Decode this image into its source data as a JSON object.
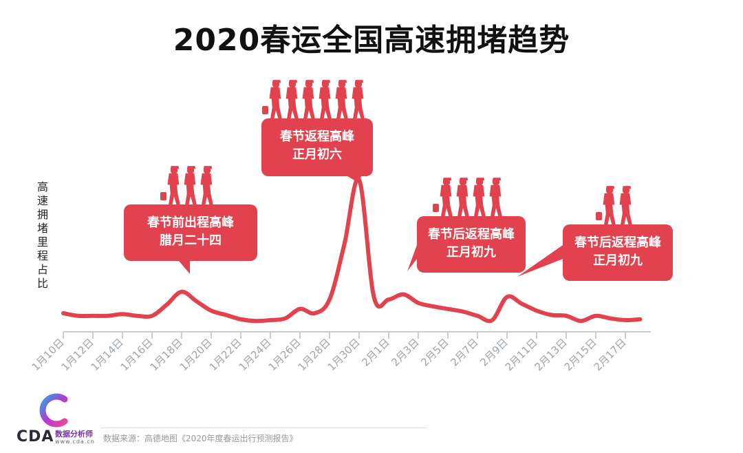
{
  "title": "2020春运全国高速拥堵趋势",
  "colors": {
    "accent": "#e2424e",
    "axis": "#c8ccd6",
    "tick_text": "#9ea3ad",
    "title": "#111111"
  },
  "chart_data": {
    "type": "line",
    "title": "2020春运全国高速拥堵趋势",
    "xlabel": "",
    "ylabel": "高速拥堵里程占比",
    "y_axis_visible": false,
    "grid": false,
    "x_tick_labels": [
      "1月10日",
      "1月12日",
      "1月14日",
      "1月16日",
      "1月18日",
      "1月20日",
      "1月22日",
      "1月24日",
      "1月26日",
      "1月28日",
      "1月30日",
      "2月1日",
      "2月3日",
      "2月5日",
      "2月7日",
      "2月9日",
      "2月11日",
      "2月13日",
      "2月15日",
      "2月17日"
    ],
    "series": [
      {
        "x": [
          "1月10日",
          "1月11日",
          "1月12日",
          "1月13日",
          "1月14日",
          "1月15日",
          "1月16日",
          "1月17日",
          "1月18日",
          "1月19日",
          "1月20日",
          "1月21日",
          "1月22日",
          "1月23日",
          "1月24日",
          "1月25日",
          "1月26日",
          "1月27日",
          "1月28日",
          "1月29日",
          "1月30日",
          "1月31日",
          "2月1日",
          "2月2日",
          "2月3日",
          "2月4日",
          "2月5日",
          "2月6日",
          "2月7日",
          "2月8日",
          "2月9日",
          "2月10日",
          "2月11日",
          "2月12日",
          "2月13日",
          "2月14日",
          "2月15日",
          "2月16日",
          "2月17日",
          "2月18日"
        ],
        "values": [
          12,
          9,
          9,
          9,
          11,
          9,
          9,
          22,
          37,
          26,
          15,
          10,
          5,
          3,
          4,
          6,
          17,
          12,
          28,
          92,
          167,
          31,
          28,
          34,
          24,
          20,
          17,
          14,
          9,
          4,
          31,
          23,
          15,
          10,
          9,
          3,
          9,
          6,
          4,
          5
        ]
      }
    ],
    "annotations": [
      {
        "lines": [
          "春节前出程高峰",
          "腊月二十四"
        ],
        "x": "1月18日",
        "figures": 3
      },
      {
        "lines": [
          "春节返程高峰",
          "正月初六"
        ],
        "x": "1月30日",
        "figures": 6
      },
      {
        "lines": [
          "春节后返程高峰",
          "正月初九"
        ],
        "x": "2月1日",
        "figures": 4
      },
      {
        "lines": [
          "春节后返程高峰",
          "正月初九"
        ],
        "x": "2月9日",
        "figures": 2
      }
    ]
  },
  "logo": {
    "mark": "CDA",
    "sub": "数据分析师",
    "url": "www.cda.cn"
  },
  "source": "数据来源：高德地图《2020年度春运出行预测报告》"
}
